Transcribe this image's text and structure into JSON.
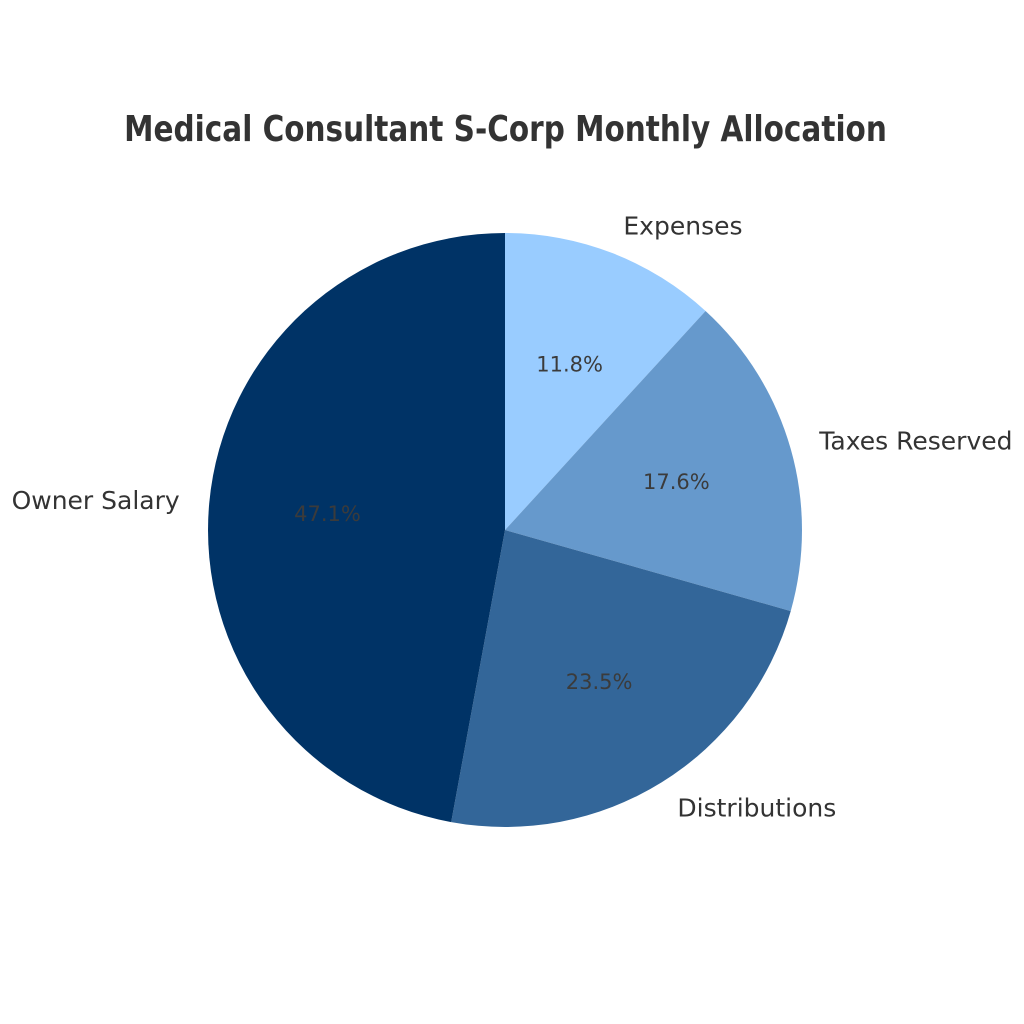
{
  "chart_data": {
    "type": "pie",
    "title": "Medical Consultant S-Corp Monthly Allocation",
    "categories": [
      "Expenses",
      "Taxes Reserved",
      "Distributions",
      "Owner Salary"
    ],
    "values": [
      11.8,
      17.6,
      23.5,
      47.1
    ],
    "percent_labels": [
      "11.8%",
      "17.6%",
      "23.5%",
      "47.1%"
    ],
    "colors": [
      "#99CCFF",
      "#6699CC",
      "#336699",
      "#003366"
    ],
    "units": "%",
    "start_angle": "top",
    "direction": "clockwise",
    "label_distance": 1.1,
    "pct_distance": 0.6,
    "legend": "none",
    "title_color": "#333333",
    "label_color": "#333333",
    "pct_color": "#3b3b3b",
    "background": "#ffffff"
  }
}
